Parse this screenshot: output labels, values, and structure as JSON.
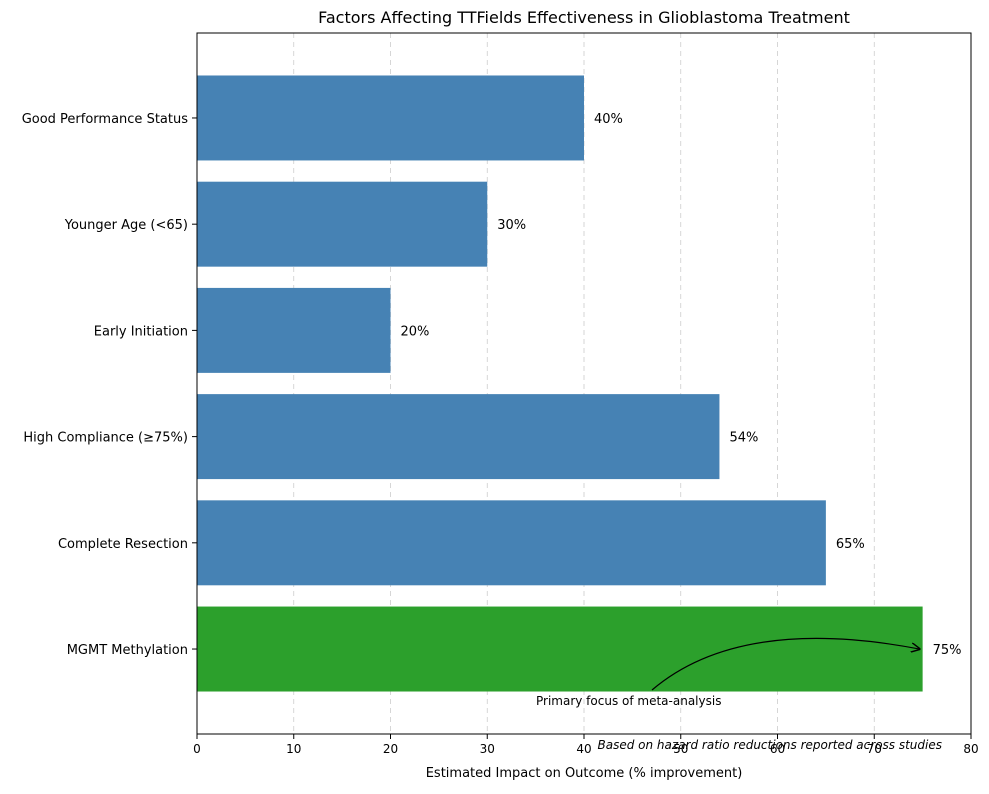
{
  "chart_data": {
    "type": "bar",
    "orientation": "horizontal",
    "title": "Factors Affecting TTFields Effectiveness in Glioblastoma Treatment",
    "xlabel": "Estimated Impact on Outcome (% improvement)",
    "ylabel": "",
    "xlim": [
      0,
      80
    ],
    "xticks": [
      "0",
      "10",
      "20",
      "30",
      "40",
      "50",
      "60",
      "70",
      "80"
    ],
    "grid": "vertical-dashed",
    "categories": [
      "MGMT Methylation",
      "Complete Resection",
      "High Compliance (≥75%)",
      "Early Initiation",
      "Younger Age (<65)",
      "Good Performance Status"
    ],
    "values": [
      75,
      65,
      54,
      20,
      30,
      40
    ],
    "value_labels": [
      "75%",
      "65%",
      "54%",
      "20%",
      "30%",
      "40%"
    ],
    "bar_colors": [
      "#2ca02c",
      "#4682b4",
      "#4682b4",
      "#4682b4",
      "#4682b4",
      "#4682b4"
    ],
    "annotation": {
      "text": "Primary focus of meta-analysis",
      "target_category": "MGMT Methylation",
      "target_value": 75
    },
    "footnote": "Based on hazard ratio reductions reported across studies"
  }
}
